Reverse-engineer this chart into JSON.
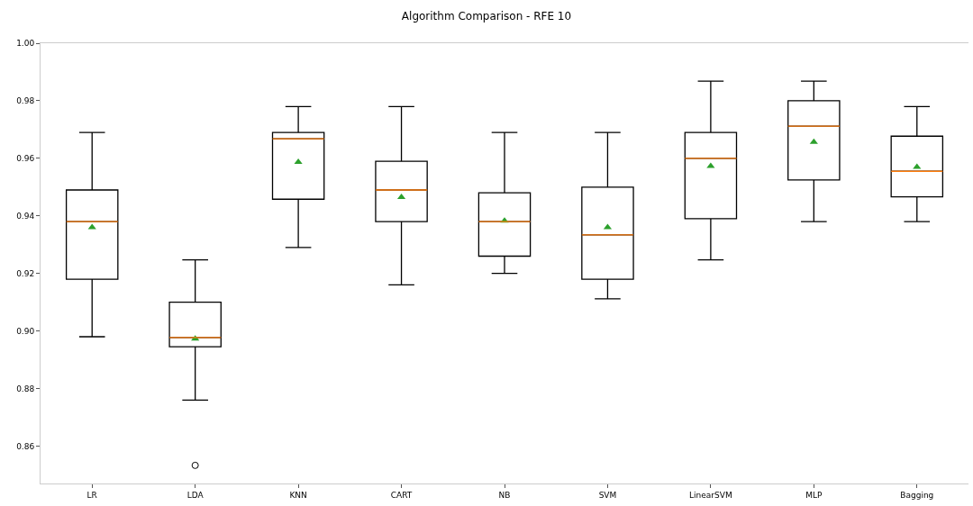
{
  "chart_data": {
    "type": "box",
    "title": "Algorithm Comparison - RFE 10",
    "categories": [
      "LR",
      "LDA",
      "KNN",
      "CART",
      "NB",
      "SVM",
      "LinearSVM",
      "MLP",
      "Bagging"
    ],
    "boxes": [
      {
        "low": 0.898,
        "q1": 0.918,
        "median": 0.938,
        "q3": 0.949,
        "high": 0.969,
        "mean": 0.936
      },
      {
        "low": 0.876,
        "q1": 0.8945,
        "median": 0.8977,
        "q3": 0.91,
        "high": 0.9247,
        "mean": 0.8973,
        "outliers": [
          0.8533
        ]
      },
      {
        "low": 0.929,
        "q1": 0.9458,
        "median": 0.9668,
        "q3": 0.969,
        "high": 0.978,
        "mean": 0.9587
      },
      {
        "low": 0.916,
        "q1": 0.938,
        "median": 0.949,
        "q3": 0.959,
        "high": 0.978,
        "mean": 0.9465
      },
      {
        "low": 0.92,
        "q1": 0.926,
        "median": 0.938,
        "q3": 0.948,
        "high": 0.969,
        "mean": 0.9383
      },
      {
        "low": 0.9112,
        "q1": 0.918,
        "median": 0.9334,
        "q3": 0.95,
        "high": 0.969,
        "mean": 0.936
      },
      {
        "low": 0.9247,
        "q1": 0.939,
        "median": 0.96,
        "q3": 0.969,
        "high": 0.9868,
        "mean": 0.9573
      },
      {
        "low": 0.938,
        "q1": 0.9525,
        "median": 0.9712,
        "q3": 0.98,
        "high": 0.9868,
        "mean": 0.9657
      },
      {
        "low": 0.938,
        "q1": 0.9466,
        "median": 0.9555,
        "q3": 0.9677,
        "high": 0.978,
        "mean": 0.957
      }
    ],
    "color": "#000000",
    "marker": "triangle",
    "ylim": [
      0.847,
      1.0
    ],
    "yticks": [
      {
        "value": 0.86,
        "label": "0.86"
      },
      {
        "value": 0.88,
        "label": "0.88"
      },
      {
        "value": 0.9,
        "label": "0.90"
      },
      {
        "value": 0.92,
        "label": "0.92"
      },
      {
        "value": 0.94,
        "label": "0.94"
      },
      {
        "value": 0.96,
        "label": "0.96"
      },
      {
        "value": 0.98,
        "label": "0.98"
      },
      {
        "value": 1.0,
        "label": "1.00"
      }
    ],
    "grid": false
  }
}
